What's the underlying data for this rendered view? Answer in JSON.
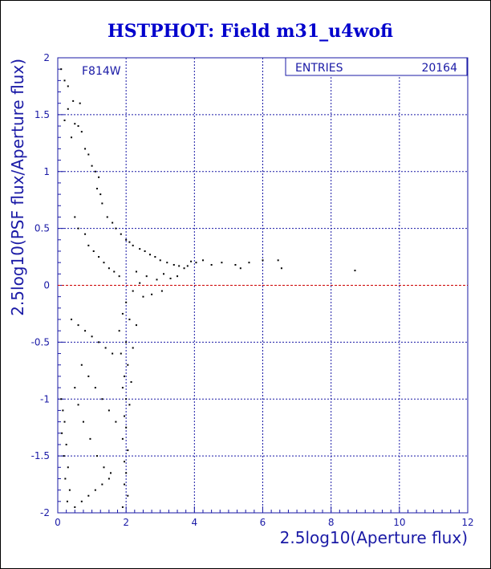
{
  "chart_data": {
    "type": "scatter",
    "title": "HSTPHOT: Field m31_u4wofi",
    "xlabel": "2.5log10(Aperture flux)",
    "ylabel": "2.5log10(PSF flux/Aperture flux)",
    "xlim": [
      0,
      12
    ],
    "ylim": [
      -2,
      2
    ],
    "xticks": [
      "0",
      "2",
      "4",
      "6",
      "8",
      "10",
      "12"
    ],
    "yticks": [
      "-2",
      "-1.5",
      "-1",
      "-0.5",
      "0",
      "0.5",
      "1",
      "1.5",
      "2"
    ],
    "grid": true,
    "filter_label": "F814W",
    "stats": {
      "label": "ENTRIES",
      "value": "20164"
    },
    "reference_line": {
      "y": 0,
      "color": "#cc0000",
      "style": "dashed"
    },
    "series": [
      {
        "marker": "dot",
        "points": [
          [
            0.1,
            1.9
          ],
          [
            0.2,
            1.8
          ],
          [
            0.3,
            1.75
          ],
          [
            0.45,
            1.62
          ],
          [
            0.65,
            1.6
          ],
          [
            0.3,
            1.55
          ],
          [
            0.2,
            1.45
          ],
          [
            0.5,
            1.42
          ],
          [
            0.6,
            1.4
          ],
          [
            0.7,
            1.35
          ],
          [
            0.4,
            1.3
          ],
          [
            0.8,
            1.2
          ],
          [
            0.9,
            1.15
          ],
          [
            1.0,
            1.05
          ],
          [
            1.1,
            1.0
          ],
          [
            1.2,
            0.95
          ],
          [
            1.15,
            0.85
          ],
          [
            1.25,
            0.8
          ],
          [
            1.3,
            0.72
          ],
          [
            1.45,
            0.6
          ],
          [
            1.6,
            0.55
          ],
          [
            1.7,
            0.5
          ],
          [
            1.85,
            0.45
          ],
          [
            2.0,
            0.4
          ],
          [
            2.1,
            0.38
          ],
          [
            2.2,
            0.35
          ],
          [
            2.4,
            0.32
          ],
          [
            2.55,
            0.3
          ],
          [
            2.7,
            0.27
          ],
          [
            2.85,
            0.25
          ],
          [
            3.0,
            0.22
          ],
          [
            3.2,
            0.2
          ],
          [
            3.4,
            0.18
          ],
          [
            3.55,
            0.17
          ],
          [
            3.7,
            0.15
          ],
          [
            3.8,
            0.17
          ],
          [
            3.9,
            0.21
          ],
          [
            4.05,
            0.2
          ],
          [
            4.25,
            0.22
          ],
          [
            4.5,
            0.18
          ],
          [
            4.8,
            0.2
          ],
          [
            5.2,
            0.18
          ],
          [
            5.35,
            0.15
          ],
          [
            5.6,
            0.2
          ],
          [
            6.0,
            0.22
          ],
          [
            6.45,
            0.22
          ],
          [
            6.55,
            0.15
          ],
          [
            8.7,
            0.13
          ],
          [
            2.3,
            0.12
          ],
          [
            2.6,
            0.08
          ],
          [
            2.9,
            0.05
          ],
          [
            3.1,
            0.1
          ],
          [
            3.3,
            0.06
          ],
          [
            3.5,
            0.08
          ],
          [
            2.4,
            0.02
          ],
          [
            2.2,
            -0.05
          ],
          [
            2.5,
            -0.1
          ],
          [
            2.75,
            -0.08
          ],
          [
            3.05,
            -0.05
          ],
          [
            2.0,
            -0.15
          ],
          [
            1.9,
            -0.25
          ],
          [
            2.1,
            -0.3
          ],
          [
            2.3,
            -0.35
          ],
          [
            1.8,
            -0.4
          ],
          [
            2.0,
            -0.5
          ],
          [
            2.2,
            -0.55
          ],
          [
            1.85,
            -0.6
          ],
          [
            2.05,
            -0.7
          ],
          [
            1.95,
            -0.8
          ],
          [
            2.15,
            -0.85
          ],
          [
            1.9,
            -0.9
          ],
          [
            2.0,
            -1.0
          ],
          [
            2.1,
            -1.05
          ],
          [
            1.95,
            -1.15
          ],
          [
            2.0,
            -1.25
          ],
          [
            1.9,
            -1.35
          ],
          [
            2.05,
            -1.45
          ],
          [
            1.95,
            -1.55
          ],
          [
            2.0,
            -1.65
          ],
          [
            1.95,
            -1.75
          ],
          [
            2.05,
            -1.85
          ],
          [
            1.9,
            -1.95
          ],
          [
            0.1,
            -1.0
          ],
          [
            0.15,
            -1.1
          ],
          [
            0.2,
            -1.2
          ],
          [
            0.12,
            -1.3
          ],
          [
            0.25,
            -1.4
          ],
          [
            0.18,
            -1.5
          ],
          [
            0.3,
            -1.6
          ],
          [
            0.22,
            -1.7
          ],
          [
            0.35,
            -1.8
          ],
          [
            0.28,
            -1.9
          ],
          [
            0.5,
            -1.95
          ],
          [
            0.7,
            -1.9
          ],
          [
            0.9,
            -1.85
          ],
          [
            1.1,
            -1.8
          ],
          [
            1.3,
            -1.75
          ],
          [
            1.5,
            -1.7
          ],
          [
            0.8,
            0.45
          ],
          [
            0.9,
            0.35
          ],
          [
            1.05,
            0.3
          ],
          [
            1.2,
            0.25
          ],
          [
            1.35,
            0.2
          ],
          [
            1.5,
            0.15
          ],
          [
            1.65,
            0.12
          ],
          [
            1.8,
            0.08
          ],
          [
            0.5,
            0.6
          ],
          [
            0.6,
            0.5
          ],
          [
            0.4,
            -0.3
          ],
          [
            0.6,
            -0.35
          ],
          [
            0.8,
            -0.4
          ],
          [
            1.0,
            -0.45
          ],
          [
            1.2,
            -0.5
          ],
          [
            1.4,
            -0.55
          ],
          [
            1.6,
            -0.6
          ],
          [
            0.7,
            -0.7
          ],
          [
            0.9,
            -0.8
          ],
          [
            1.1,
            -0.9
          ],
          [
            1.3,
            -1.0
          ],
          [
            1.5,
            -1.1
          ],
          [
            1.7,
            -1.2
          ],
          [
            0.5,
            -0.9
          ],
          [
            0.6,
            -1.05
          ],
          [
            0.75,
            -1.2
          ],
          [
            0.95,
            -1.35
          ],
          [
            1.15,
            -1.5
          ],
          [
            1.35,
            -1.6
          ],
          [
            1.55,
            -1.65
          ]
        ]
      }
    ]
  }
}
